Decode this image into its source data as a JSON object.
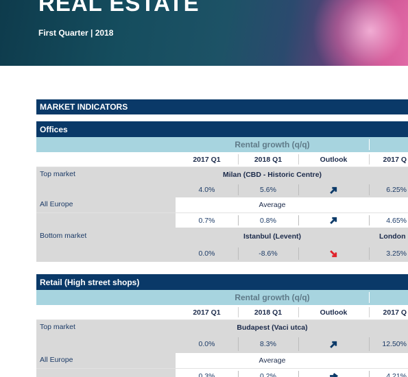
{
  "banner": {
    "title": "REAL ESTATE",
    "subtitle": "First Quarter | 2018"
  },
  "market_indicators_label": "MARKET INDICATORS",
  "colors": {
    "navy": "#0a3968",
    "teal_header": "#a7d4df",
    "arrow_up": "#0a3968",
    "arrow_down": "#e0222b"
  },
  "sections": [
    {
      "title": "Offices",
      "growth_label": "Rental growth (q/q)",
      "columns": [
        "2017 Q1",
        "2018 Q1",
        "Outlook",
        "2017 Q"
      ],
      "rows": [
        {
          "label": "Top market",
          "market": "Milan (CBD - Historic Centre)",
          "v2017": "4.0%",
          "v2018": "5.6%",
          "outlook": "up",
          "extra_top": "",
          "extra": "6.25%"
        },
        {
          "label": "All Europe",
          "market": "Average",
          "v2017": "0.7%",
          "v2018": "0.8%",
          "outlook": "up",
          "extra_top": "",
          "extra": "4.65%"
        },
        {
          "label": "Bottom market",
          "market": "Istanbul (Levent)",
          "v2017": "0.0%",
          "v2018": "-8.6%",
          "outlook": "down",
          "extra_top": "London",
          "extra": "3.25%"
        }
      ]
    },
    {
      "title": "Retail (High street shops)",
      "growth_label": "Rental growth (q/q)",
      "columns": [
        "2017 Q1",
        "2018 Q1",
        "Outlook",
        "2017 Q"
      ],
      "rows": [
        {
          "label": "Top market",
          "market": "Budapest (Vaci utca)",
          "v2017": "0.0%",
          "v2018": "8.3%",
          "outlook": "up",
          "extra_top": "",
          "extra": "12.50%"
        },
        {
          "label": "All Europe",
          "market": "Average",
          "v2017": "0.3%",
          "v2018": "0.2%",
          "outlook": "flat",
          "extra_top": "",
          "extra": "4.21%"
        }
      ]
    }
  ]
}
